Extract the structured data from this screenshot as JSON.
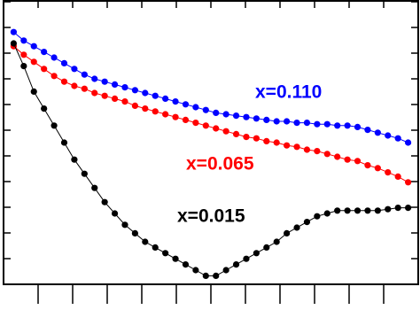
{
  "chart_data": {
    "type": "line",
    "x": [
      0,
      1,
      2,
      3,
      4,
      5,
      6,
      7,
      8,
      9,
      10,
      11,
      12,
      13,
      14,
      15,
      16,
      17,
      18,
      19,
      20,
      21,
      22,
      23,
      24,
      25,
      26,
      27,
      28,
      29,
      30,
      31,
      32,
      33,
      34,
      35,
      36,
      37,
      38,
      39
    ],
    "xlim": [
      -1,
      40
    ],
    "ylim": [
      0,
      100
    ],
    "series": [
      {
        "name": "x=0.110",
        "color": "#0000ff",
        "values": [
          89,
          86,
          84,
          82,
          80,
          78,
          76,
          74,
          72.5,
          71.5,
          70.5,
          69.5,
          68.5,
          67.5,
          66.5,
          65.5,
          64.5,
          63.5,
          62.5,
          61.5,
          60.5,
          60,
          59.5,
          59,
          58.5,
          58,
          57.5,
          57.5,
          57,
          57,
          56.5,
          56.5,
          56,
          56,
          55.5,
          54.5,
          53.5,
          52.5,
          51.5,
          50
        ]
      },
      {
        "name": "x=0.065",
        "color": "#ff0000",
        "values": [
          84,
          81,
          78.5,
          76,
          73.5,
          71.5,
          70,
          69,
          67.5,
          66.5,
          65.5,
          64.5,
          63,
          62,
          61,
          60,
          59,
          58,
          57,
          56,
          55,
          54,
          53,
          52,
          51.5,
          50.5,
          50,
          49,
          48.5,
          47.5,
          47,
          46,
          45,
          44,
          43.5,
          42,
          41,
          39.5,
          38,
          36
        ]
      },
      {
        "name": "x=0.015",
        "color": "#000000",
        "values": [
          85,
          77,
          68,
          62,
          56,
          50,
          44,
          39,
          34,
          29,
          25,
          21,
          18,
          15,
          13,
          11,
          9,
          7,
          5,
          3,
          3,
          5,
          7,
          9,
          11,
          13,
          15,
          18,
          20,
          22,
          24,
          25,
          26,
          26,
          26,
          26,
          26,
          26.5,
          27,
          27
        ]
      }
    ]
  }
}
